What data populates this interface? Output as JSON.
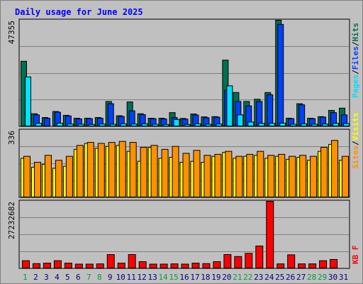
{
  "title": "Daily usage for June 2025",
  "colors": {
    "background": "#c0c0c0",
    "title": "#0000ff",
    "hits": "#007050",
    "files": "#0040ff",
    "pages": "#00e0ff",
    "visits": "#ffff00",
    "sites": "#ff9000",
    "kbytes": "#ff0000",
    "weekend_label": "#00a040",
    "weekday_label": "#000080"
  },
  "chart_data": [
    {
      "type": "bar",
      "panel": "top",
      "max_label": "47355",
      "ylim": [
        0,
        47355
      ],
      "legend_labels": [
        "Pages",
        "Files",
        "Hits"
      ],
      "legend_separator": "/",
      "categories": [
        "1",
        "2",
        "3",
        "4",
        "5",
        "6",
        "7",
        "8",
        "9",
        "10",
        "11",
        "12",
        "13",
        "14",
        "15",
        "16",
        "17",
        "18",
        "19",
        "20",
        "21",
        "22",
        "23",
        "24",
        "25",
        "26",
        "27",
        "28",
        "29",
        "30",
        "31"
      ],
      "series": [
        {
          "name": "Hits",
          "values": [
            29000,
            5500,
            3800,
            6500,
            4800,
            3500,
            3500,
            3800,
            11000,
            4600,
            10800,
            5500,
            3500,
            3500,
            6000,
            3400,
            5400,
            4100,
            4200,
            29500,
            15000,
            11000,
            12000,
            15000,
            47355,
            3500,
            10000,
            3500,
            4200,
            7000,
            8000
          ]
        },
        {
          "name": "Files",
          "values": [
            0,
            5000,
            3500,
            6200,
            4500,
            3200,
            3300,
            3500,
            10000,
            4300,
            6800,
            5100,
            3300,
            3200,
            3800,
            3100,
            4900,
            3700,
            4000,
            16000,
            11000,
            9000,
            11000,
            14000,
            45500,
            3300,
            9500,
            3300,
            4000,
            6000,
            5000
          ]
        },
        {
          "name": "Pages",
          "values": [
            22000,
            1200,
            0,
            1300,
            900,
            800,
            700,
            900,
            800,
            1000,
            900,
            1000,
            800,
            700,
            2900,
            700,
            1000,
            800,
            900,
            18000,
            5000,
            1800,
            1200,
            1200,
            1300,
            800,
            1000,
            800,
            900,
            1200,
            1100
          ]
        }
      ]
    },
    {
      "type": "bar",
      "panel": "middle",
      "max_label": "336",
      "ylim": [
        0,
        336
      ],
      "legend_labels": [
        "Sites",
        "Visits"
      ],
      "legend_separator": "/",
      "categories": [
        "1",
        "2",
        "3",
        "4",
        "5",
        "6",
        "7",
        "8",
        "9",
        "10",
        "11",
        "12",
        "13",
        "14",
        "15",
        "16",
        "17",
        "18",
        "19",
        "20",
        "21",
        "22",
        "23",
        "24",
        "25",
        "26",
        "27",
        "28",
        "29",
        "30",
        "31"
      ],
      "series": [
        {
          "name": "Visits",
          "values": [
            195,
            150,
            165,
            145,
            155,
            240,
            270,
            245,
            255,
            260,
            230,
            180,
            250,
            195,
            200,
            175,
            180,
            175,
            205,
            225,
            195,
            205,
            210,
            195,
            205,
            190,
            200,
            185,
            230,
            265,
            185
          ]
        },
        {
          "name": "Sites",
          "values": [
            205,
            175,
            210,
            185,
            205,
            260,
            275,
            270,
            275,
            280,
            275,
            250,
            260,
            240,
            255,
            220,
            235,
            210,
            215,
            230,
            205,
            215,
            230,
            210,
            215,
            205,
            210,
            205,
            250,
            285,
            205
          ]
        }
      ]
    },
    {
      "type": "bar",
      "panel": "bottom",
      "max_label": "27232682",
      "ylim": [
        0,
        27232682
      ],
      "legend_labels": [
        "KB F"
      ],
      "categories": [
        "1",
        "2",
        "3",
        "4",
        "5",
        "6",
        "7",
        "8",
        "9",
        "10",
        "11",
        "12",
        "13",
        "14",
        "15",
        "16",
        "17",
        "18",
        "19",
        "20",
        "21",
        "22",
        "23",
        "24",
        "25",
        "26",
        "27",
        "28",
        "29",
        "30",
        "31"
      ],
      "series": [
        {
          "name": "KB F",
          "values": [
            3000000,
            1800000,
            2000000,
            3000000,
            2000000,
            1600000,
            1600000,
            1700000,
            5500000,
            2000000,
            5500000,
            2600000,
            1600000,
            1600000,
            1700000,
            1600000,
            2000000,
            1800000,
            2600000,
            5500000,
            4700000,
            6000000,
            9000000,
            27232682,
            1700000,
            5400000,
            1700000,
            1700000,
            3000000,
            3500000,
            0
          ]
        }
      ]
    }
  ]
}
